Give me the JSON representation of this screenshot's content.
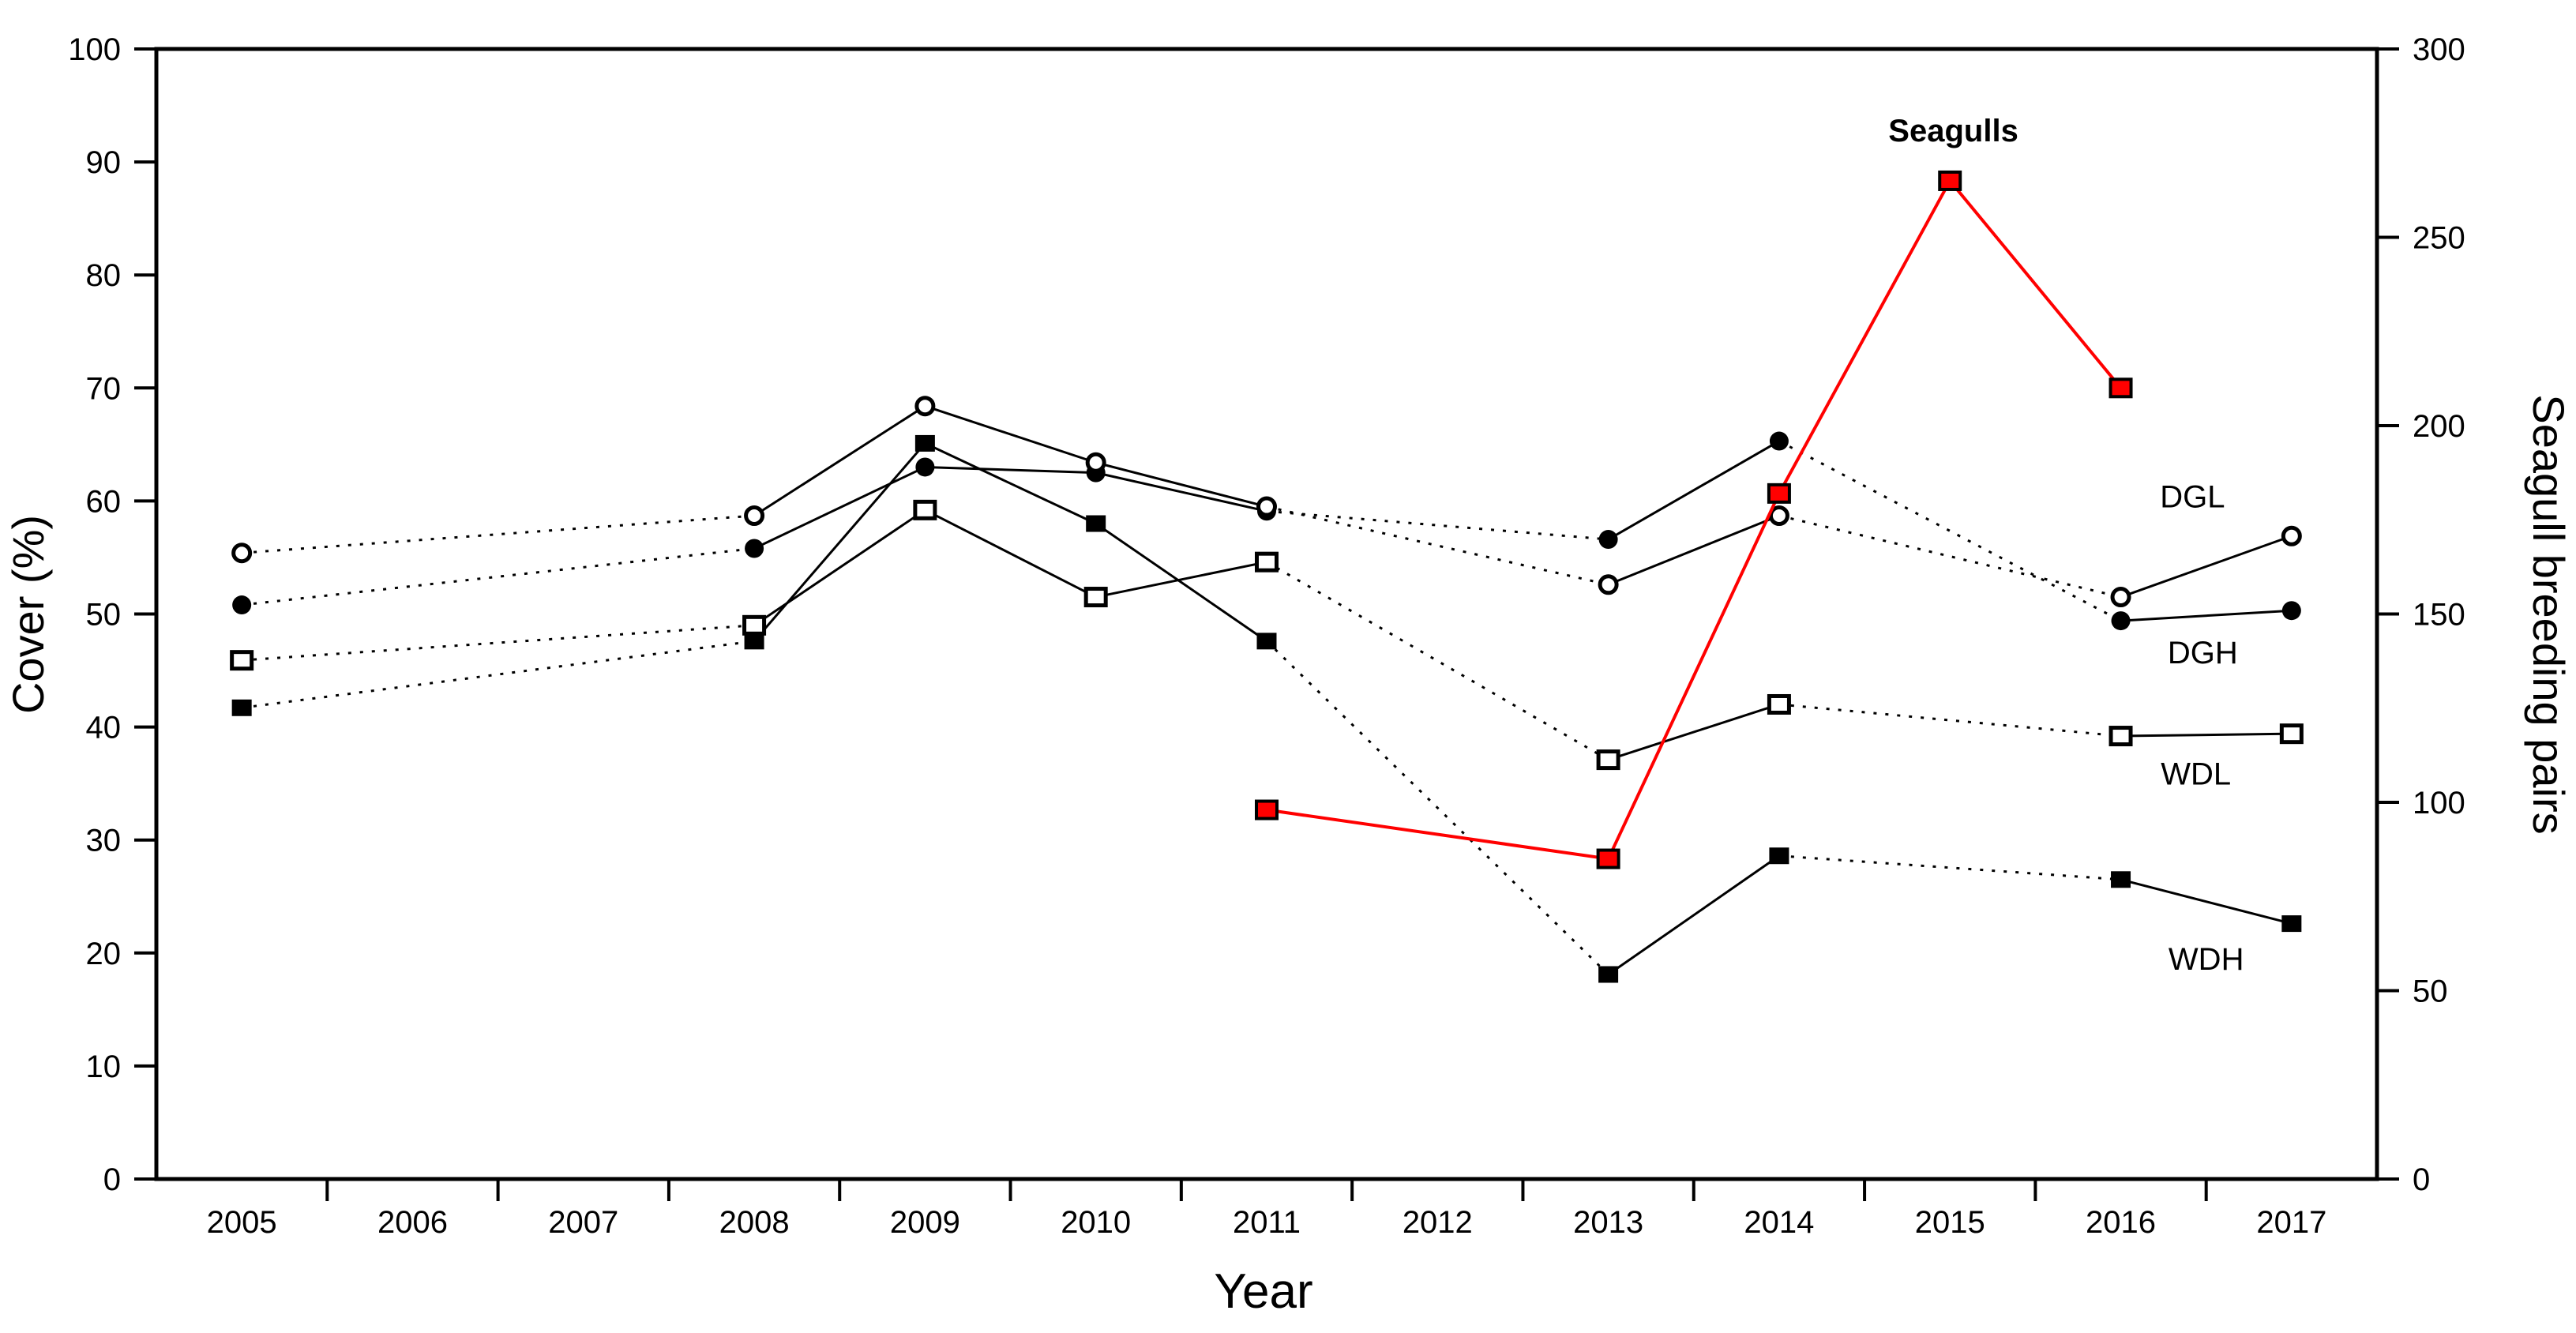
{
  "chart_data": {
    "type": "line",
    "title": "",
    "grid": false,
    "legend_position": "none",
    "x_axis": {
      "label": "Year",
      "categories": [
        "2005",
        "2006",
        "2007",
        "2008",
        "2009",
        "2010",
        "2011",
        "2012",
        "2013",
        "2014",
        "2015",
        "2016",
        "2017"
      ]
    },
    "y_axis_left": {
      "label": "Cover (%)",
      "min": 0,
      "max": 100,
      "step": 10,
      "tick_labels": [
        "0",
        "10",
        "20",
        "30",
        "40",
        "50",
        "60",
        "70",
        "80",
        "90",
        "100"
      ]
    },
    "y_axis_right": {
      "label": "Seagull breeding pairs",
      "min": 0,
      "max": 300,
      "step": 50,
      "tick_labels": [
        "0",
        "50",
        "100",
        "150",
        "200",
        "250",
        "300"
      ]
    },
    "series": [
      {
        "name": "WDH",
        "axis": "left",
        "marker": "square-filled",
        "color": "#000000",
        "marker_edge": "#000000",
        "line_width": 3,
        "dash_gaps": true,
        "points": [
          {
            "year": 2005,
            "value": 41.7
          },
          {
            "year": 2008,
            "value": 47.6
          },
          {
            "year": 2009,
            "value": 65.1
          },
          {
            "year": 2010,
            "value": 58.0
          },
          {
            "year": 2011,
            "value": 47.6
          },
          {
            "year": 2013,
            "value": 18.1
          },
          {
            "year": 2014,
            "value": 28.6
          },
          {
            "year": 2016,
            "value": 26.5
          },
          {
            "year": 2017,
            "value": 22.6
          }
        ]
      },
      {
        "name": "WDL",
        "axis": "left",
        "marker": "square-open",
        "color": "#000000",
        "marker_edge": "#000000",
        "line_width": 3,
        "dash_gaps": true,
        "points": [
          {
            "year": 2005,
            "value": 45.9
          },
          {
            "year": 2008,
            "value": 49.0
          },
          {
            "year": 2009,
            "value": 59.2
          },
          {
            "year": 2010,
            "value": 51.5
          },
          {
            "year": 2011,
            "value": 54.6
          },
          {
            "year": 2013,
            "value": 37.1
          },
          {
            "year": 2014,
            "value": 42.0
          },
          {
            "year": 2016,
            "value": 39.2
          },
          {
            "year": 2017,
            "value": 39.4
          }
        ]
      },
      {
        "name": "DGH",
        "axis": "left",
        "marker": "circle-filled",
        "color": "#000000",
        "marker_edge": "#000000",
        "line_width": 3,
        "dash_gaps": true,
        "points": [
          {
            "year": 2005,
            "value": 50.8
          },
          {
            "year": 2008,
            "value": 55.8
          },
          {
            "year": 2009,
            "value": 63.0
          },
          {
            "year": 2010,
            "value": 62.5
          },
          {
            "year": 2011,
            "value": 59.1
          },
          {
            "year": 2013,
            "value": 56.6
          },
          {
            "year": 2014,
            "value": 65.3
          },
          {
            "year": 2016,
            "value": 49.4
          },
          {
            "year": 2017,
            "value": 50.3
          }
        ]
      },
      {
        "name": "DGL",
        "axis": "left",
        "marker": "circle-open",
        "color": "#000000",
        "marker_edge": "#000000",
        "line_width": 3,
        "dash_gaps": true,
        "points": [
          {
            "year": 2005,
            "value": 55.4
          },
          {
            "year": 2008,
            "value": 58.7
          },
          {
            "year": 2009,
            "value": 68.4
          },
          {
            "year": 2010,
            "value": 63.4
          },
          {
            "year": 2011,
            "value": 59.5
          },
          {
            "year": 2013,
            "value": 52.6
          },
          {
            "year": 2014,
            "value": 58.7
          },
          {
            "year": 2016,
            "value": 51.5
          },
          {
            "year": 2017,
            "value": 56.9
          }
        ]
      },
      {
        "name": "Seagulls",
        "axis": "right",
        "marker": "square-red",
        "color": "#FF0000",
        "marker_edge": "#000000",
        "line_width": 4,
        "dash_gaps": false,
        "points": [
          {
            "year": 2011,
            "value": 98
          },
          {
            "year": 2013,
            "value": 85
          },
          {
            "year": 2014,
            "value": 182
          },
          {
            "year": 2015,
            "value": 265
          },
          {
            "year": 2016,
            "value": 210
          }
        ]
      }
    ],
    "annotations": [
      {
        "text": "Seagulls",
        "year": 2015.02,
        "value": 92.8,
        "color": "#FF0000",
        "bold": true
      },
      {
        "text": "DGL",
        "year": 2016.42,
        "value": 60.4,
        "color": "#000000",
        "bold": false
      },
      {
        "text": "DGH",
        "year": 2016.48,
        "value": 46.6,
        "color": "#000000",
        "bold": false
      },
      {
        "text": "WDL",
        "year": 2016.44,
        "value": 35.9,
        "color": "#000000",
        "bold": false
      },
      {
        "text": "WDH",
        "year": 2016.5,
        "value": 19.5,
        "color": "#000000",
        "bold": false
      }
    ],
    "colors": {
      "frame": "#000000",
      "background": "#FFFFFF"
    }
  }
}
